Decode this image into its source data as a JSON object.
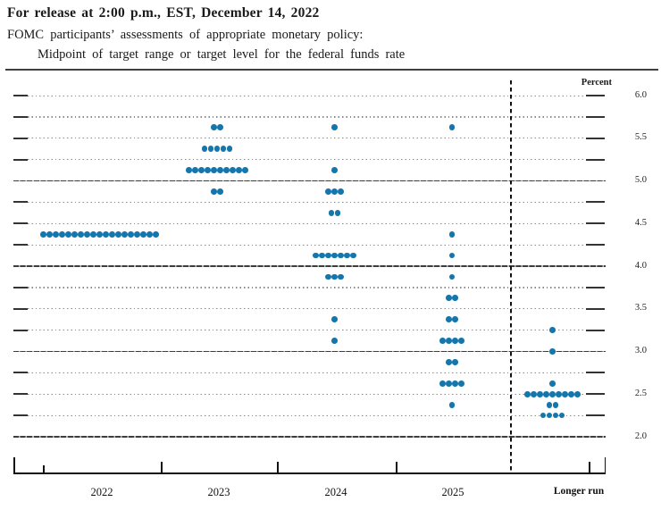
{
  "header": {
    "release_line": "For release at 2:00 p.m., EST, December 14, 2022",
    "subtitle_1": "FOMC participants’ assessments of appropriate monetary policy:",
    "subtitle_2": "Midpoint of target range  or target level for the federal funds rate"
  },
  "chart_data": {
    "type": "scatter",
    "title": "FOMC participants’ assessments of appropriate monetary policy: Midpoint of target range or target level for the federal funds rate",
    "ylabel": "Percent",
    "unit_label": "Percent",
    "ylim": [
      2.0,
      6.0
    ],
    "gridline_step": 0.25,
    "grid": "dotted horizontal each 0.25, darker lines at integers, dashed vertical divider before Longer run",
    "y_tick_labels": [
      {
        "value": 6.0,
        "label": "6.0"
      },
      {
        "value": 5.5,
        "label": "5.5"
      },
      {
        "value": 5.0,
        "label": "5.0"
      },
      {
        "value": 4.5,
        "label": "4.5"
      },
      {
        "value": 4.0,
        "label": "4.0"
      },
      {
        "value": 3.5,
        "label": "3.5"
      },
      {
        "value": 3.0,
        "label": "3.0"
      },
      {
        "value": 2.5,
        "label": "2.5"
      },
      {
        "value": 2.0,
        "label": "2.0"
      }
    ],
    "categories": [
      "2022",
      "2023",
      "2024",
      "2025",
      "Longer run"
    ],
    "dot_color": "#1376ac",
    "series": [
      {
        "name": "2022",
        "dots": [
          {
            "rate": 4.375,
            "count": 19
          }
        ]
      },
      {
        "name": "2023",
        "dots": [
          {
            "rate": 5.625,
            "count": 2
          },
          {
            "rate": 5.375,
            "count": 5
          },
          {
            "rate": 5.125,
            "count": 10
          },
          {
            "rate": 4.875,
            "count": 2
          }
        ]
      },
      {
        "name": "2024",
        "dots": [
          {
            "rate": 5.625,
            "count": 1
          },
          {
            "rate": 5.125,
            "count": 1
          },
          {
            "rate": 4.875,
            "count": 3
          },
          {
            "rate": 4.625,
            "count": 2
          },
          {
            "rate": 4.125,
            "count": 7
          },
          {
            "rate": 3.875,
            "count": 3
          },
          {
            "rate": 3.375,
            "count": 1
          },
          {
            "rate": 3.125,
            "count": 1
          }
        ]
      },
      {
        "name": "2025",
        "dots": [
          {
            "rate": 5.625,
            "count": 1
          },
          {
            "rate": 4.375,
            "count": 1
          },
          {
            "rate": 4.125,
            "count": 1
          },
          {
            "rate": 3.875,
            "count": 1
          },
          {
            "rate": 3.625,
            "count": 2
          },
          {
            "rate": 3.375,
            "count": 2
          },
          {
            "rate": 3.125,
            "count": 4
          },
          {
            "rate": 2.875,
            "count": 2
          },
          {
            "rate": 2.625,
            "count": 4
          },
          {
            "rate": 2.375,
            "count": 1
          }
        ]
      },
      {
        "name": "Longer run",
        "dots": [
          {
            "rate": 3.25,
            "count": 1
          },
          {
            "rate": 3.0,
            "count": 1
          },
          {
            "rate": 2.625,
            "count": 1
          },
          {
            "rate": 2.5,
            "count": 9
          },
          {
            "rate": 2.375,
            "count": 2
          },
          {
            "rate": 2.25,
            "count": 4
          }
        ]
      }
    ]
  }
}
